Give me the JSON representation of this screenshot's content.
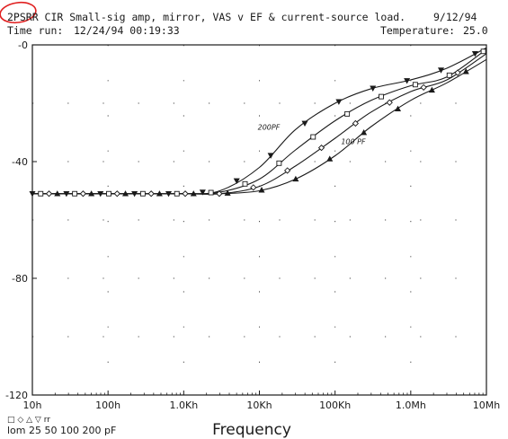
{
  "header": {
    "title": "2PSRR CIR Small-sig amp, mirror, VAS v EF & current-source load.",
    "date": "9/12/94",
    "time_run_label": "Time run:",
    "time_run_value": "12/24/94  00:19:33",
    "temperature_label": "Temperature:",
    "temperature_value": "25.0"
  },
  "legend": {
    "symbols": "□   ◇   △   ▽  rr",
    "text": "lom 25  50 100  200 pF"
  },
  "colors": {
    "ink": "#1a1a1a",
    "annotation_red": "#e02020",
    "background": "#ffffff"
  },
  "chart_data": {
    "type": "line",
    "xlabel": "Frequency",
    "ylabel": "",
    "x_scale": "log",
    "xlim": [
      10,
      10000000
    ],
    "ylim": [
      -120,
      0
    ],
    "x_ticks": [
      {
        "value": 10,
        "label": "10h"
      },
      {
        "value": 100,
        "label": "100h"
      },
      {
        "value": 1000,
        "label": "1.0Kh"
      },
      {
        "value": 10000,
        "label": "10Kh"
      },
      {
        "value": 100000,
        "label": "100Kh"
      },
      {
        "value": 1000000,
        "label": "1.0Mh"
      },
      {
        "value": 10000000,
        "label": "10Mh"
      }
    ],
    "y_ticks": [
      {
        "value": 0,
        "label": "-0"
      },
      {
        "value": -40,
        "label": "-40"
      },
      {
        "value": -80,
        "label": "-80"
      },
      {
        "value": -120,
        "label": "-120"
      }
    ],
    "grid": "dotted",
    "annotations": [
      {
        "text": "200PF",
        "x": 9500,
        "y": -29
      },
      {
        "text": "100 PF",
        "x": 120000,
        "y": -34
      }
    ],
    "series": [
      {
        "marker": "inverted-triangle",
        "x": [
          10,
          100,
          1000,
          3000,
          10000,
          30000,
          100000,
          300000,
          1000000,
          3000000,
          10000000
        ],
        "y": [
          -51,
          -51,
          -51,
          -50,
          -42,
          -29,
          -20,
          -15,
          -12,
          -8,
          -1
        ]
      },
      {
        "marker": "square",
        "x": [
          10,
          100,
          1000,
          3000,
          10000,
          30000,
          100000,
          300000,
          1000000,
          3000000,
          10000000
        ],
        "y": [
          -51,
          -51,
          -51,
          -50.5,
          -46,
          -36,
          -26,
          -19,
          -14,
          -11,
          -1.5
        ]
      },
      {
        "marker": "diamond",
        "x": [
          10,
          100,
          1000,
          3000,
          10000,
          30000,
          100000,
          300000,
          1000000,
          3000000,
          10000000
        ],
        "y": [
          -51,
          -51,
          -51,
          -51,
          -48.5,
          -41.5,
          -32,
          -23,
          -16,
          -12,
          -3
        ]
      },
      {
        "marker": "triangle",
        "x": [
          10,
          100,
          1000,
          3000,
          10000,
          30000,
          100000,
          300000,
          1000000,
          3000000,
          10000000
        ],
        "y": [
          -51,
          -51,
          -51,
          -51,
          -50,
          -46,
          -38,
          -28,
          -19,
          -13,
          -5
        ]
      }
    ]
  }
}
